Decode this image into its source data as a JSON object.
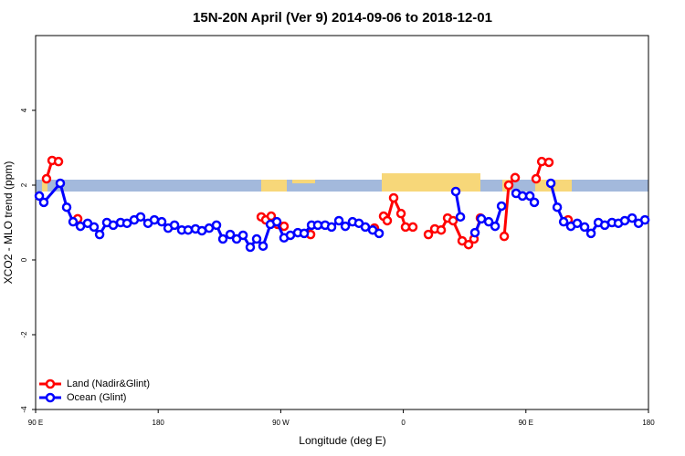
{
  "chart_data": {
    "type": "line",
    "title": "15N-20N April (Ver 9)   2014-09-06 to 2018-12-01",
    "x_label": "Longitude (deg E)",
    "y_label": "XCO2 - MLO trend (ppm)",
    "xlim": [
      90,
      540
    ],
    "xticks": [
      {
        "value": 90,
        "label": "90 E"
      },
      {
        "value": 180,
        "label": "180"
      },
      {
        "value": 270,
        "label": "90 W"
      },
      {
        "value": 360,
        "label": "0"
      },
      {
        "value": 450,
        "label": "90 E"
      },
      {
        "value": 540,
        "label": "180"
      }
    ],
    "ylim": [
      -4,
      6
    ],
    "yticks": [
      -4,
      -2,
      0,
      2,
      4
    ],
    "legend": "bottom-left",
    "series": [
      {
        "name": "Land (Nadir&Glint)",
        "color": "#ff0000",
        "x": [
          98.0,
          102.1,
          106.8,
          null,
          120.9,
          null,
          255.7,
          259.0,
          263.0,
          267.7,
          272.4,
          null,
          291.9,
          null,
          338.8,
          null,
          345.5,
          348.2,
          352.9,
          358.3,
          361.6,
          367.0,
          null,
          378.4,
          383.1,
          387.8,
          392.5,
          396.5,
          403.2,
          407.9,
          411.9,
          416.6,
          null,
          434.1,
          437.4,
          442.1,
          null,
          457.5,
          461.6,
          466.9,
          null,
          481.0
        ],
        "values": [
          2.17,
          2.66,
          2.63,
          null,
          1.1,
          null,
          1.15,
          1.07,
          1.17,
          0.95,
          0.9,
          null,
          0.68,
          null,
          0.85,
          null,
          1.17,
          1.05,
          1.66,
          1.24,
          0.88,
          0.88,
          null,
          0.68,
          0.83,
          0.8,
          1.12,
          1.05,
          0.51,
          0.41,
          0.56,
          1.12,
          null,
          0.63,
          2.0,
          2.2,
          null,
          2.17,
          2.63,
          2.61,
          null,
          1.07
        ]
      },
      {
        "name": "Ocean (Glint)",
        "color": "#0000ff",
        "x": [
          92.7,
          96.0,
          108.1,
          112.8,
          117.5,
          122.9,
          128.2,
          132.9,
          137.0,
          142.3,
          147.0,
          152.4,
          157.1,
          162.4,
          167.1,
          172.5,
          177.2,
          182.6,
          187.3,
          192.0,
          197.3,
          202.0,
          207.4,
          212.1,
          217.4,
          222.8,
          227.5,
          232.9,
          237.6,
          242.3,
          247.6,
          252.3,
          257.0,
          262.4,
          267.1,
          272.4,
          277.1,
          282.5,
          287.2,
          292.6,
          297.2,
          302.6,
          307.3,
          312.7,
          317.4,
          322.7,
          327.4,
          332.1,
          337.5,
          342.2,
          null,
          398.5,
          401.9,
          null,
          412.6,
          417.3,
          422.7,
          427.4,
          432.1,
          null,
          442.8,
          447.5,
          452.9,
          456.2,
          null,
          468.3,
          473.0,
          477.7,
          483.0,
          487.7,
          493.1,
          497.8,
          503.2,
          507.9,
          513.2,
          517.9,
          522.6,
          528.0,
          532.7,
          537.4
        ],
        "values": [
          1.71,
          1.54,
          2.05,
          1.41,
          1.02,
          0.9,
          0.98,
          0.88,
          0.68,
          1.0,
          0.93,
          1.0,
          0.98,
          1.07,
          1.15,
          0.98,
          1.07,
          1.02,
          0.85,
          0.93,
          0.8,
          0.8,
          0.83,
          0.78,
          0.85,
          0.93,
          0.56,
          0.68,
          0.56,
          0.66,
          0.34,
          0.56,
          0.37,
          0.95,
          1.02,
          0.59,
          0.66,
          0.73,
          0.71,
          0.93,
          0.93,
          0.93,
          0.88,
          1.05,
          0.9,
          1.02,
          0.98,
          0.88,
          0.8,
          0.71,
          null,
          1.83,
          1.15,
          null,
          0.73,
          1.1,
          1.02,
          0.9,
          1.44,
          null,
          1.78,
          1.71,
          1.71,
          1.54,
          null,
          2.05,
          1.41,
          1.02,
          0.9,
          0.98,
          0.88,
          0.71,
          1.0,
          0.93,
          1.0,
          0.98,
          1.05,
          1.12,
          0.98,
          1.07
        ]
      }
    ]
  }
}
